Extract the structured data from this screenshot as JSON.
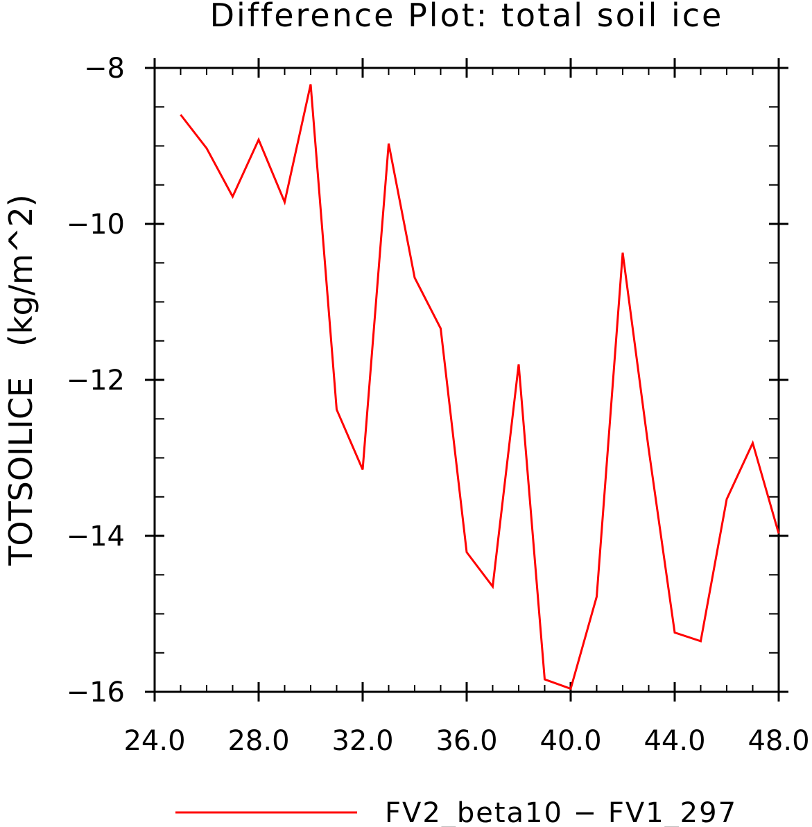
{
  "chart_data": {
    "type": "line",
    "title": "Difference Plot: total soil ice",
    "ylabel": "TOTSOILICE   (kg/m^2)",
    "xlabel": "",
    "xlim": [
      24.0,
      48.0
    ],
    "ylim": [
      -16,
      -8
    ],
    "x_ticks": [
      24,
      28,
      32,
      36,
      40,
      44,
      48
    ],
    "x_tick_labels": [
      "24.0",
      "28.0",
      "32.0",
      "36.0",
      "40.0",
      "44.0",
      "48.0"
    ],
    "y_ticks": [
      -8,
      -10,
      -12,
      -14,
      -16
    ],
    "y_tick_labels": [
      "−8",
      "−10",
      "−12",
      "−14",
      "−16"
    ],
    "x_minor_step": 1,
    "y_minor_step": 0.5,
    "grid": false,
    "legend_position": "bottom-center",
    "series": [
      {
        "name": "FV2_beta10 − FV1_297",
        "color": "#ff0000",
        "x": [
          25,
          26,
          27,
          28,
          29,
          30,
          31,
          32,
          33,
          34,
          35,
          36,
          37,
          38,
          39,
          40,
          41,
          42,
          43,
          44,
          45,
          46,
          47,
          48
        ],
        "y": [
          -8.6,
          -9.03,
          -9.65,
          -8.92,
          -9.72,
          -8.21,
          -12.38,
          -13.15,
          -8.97,
          -10.69,
          -11.34,
          -14.21,
          -14.65,
          -11.8,
          -15.84,
          -15.96,
          -14.78,
          -10.37,
          -12.89,
          -15.24,
          -15.35,
          -13.53,
          -12.81,
          -13.97
        ]
      }
    ]
  }
}
